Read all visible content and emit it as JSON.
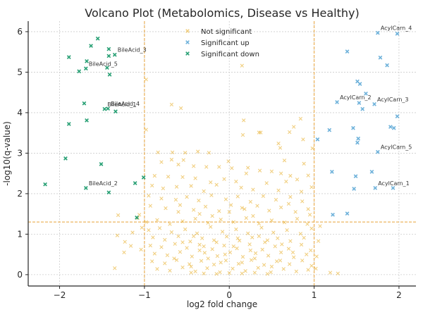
{
  "chart_data": {
    "type": "scatter",
    "title": "Volcano Plot (Metabolomics, Disease vs Healthy)",
    "xlabel": "log2 fold change",
    "ylabel": "-log10(q-value)",
    "xlim": [
      -2.37,
      2.2
    ],
    "ylim": [
      -0.28,
      6.26
    ],
    "xticks": [
      -2,
      -1,
      0,
      1,
      2
    ],
    "xtick_labels": [
      "−2",
      "−1",
      "0",
      "1",
      "2"
    ],
    "yticks": [
      0,
      1,
      2,
      3,
      4,
      5,
      6
    ],
    "ytick_labels": [
      "0",
      "1",
      "2",
      "3",
      "4",
      "5",
      "6"
    ],
    "grid": true,
    "marker": "x",
    "legend_position": "top-center",
    "thresholds": {
      "fold_change": [
        -1,
        1
      ],
      "q_value_line": 1.3,
      "color": "#E8A33A"
    },
    "series": [
      {
        "name": "Not significant",
        "color": "#E6A817",
        "opacity": 0.55,
        "points": [
          [
            0.15,
            5.16
          ],
          [
            -0.98,
            4.82
          ],
          [
            -0.68,
            4.2
          ],
          [
            -0.57,
            4.11
          ],
          [
            -0.98,
            3.58
          ],
          [
            0.17,
            3.81
          ],
          [
            0.16,
            3.45
          ],
          [
            0.35,
            3.51
          ],
          [
            0.37,
            3.51
          ],
          [
            0.71,
            3.52
          ],
          [
            0.84,
            3.85
          ],
          [
            0.76,
            3.65
          ],
          [
            0.98,
            3.12
          ],
          [
            0.6,
            3.13
          ],
          [
            0.65,
            2.82
          ],
          [
            0.88,
            2.74
          ],
          [
            0.22,
            2.64
          ],
          [
            0.87,
            3.34
          ],
          [
            0.58,
            3.24
          ],
          [
            -0.84,
            3.02
          ],
          [
            -0.67,
            3.02
          ],
          [
            -0.52,
            3.01
          ],
          [
            -0.37,
            3.04
          ],
          [
            -0.24,
            3.01
          ],
          [
            -0.68,
            2.84
          ],
          [
            -0.54,
            2.83
          ],
          [
            -0.8,
            2.78
          ],
          [
            -0.6,
            2.72
          ],
          [
            -0.42,
            2.68
          ],
          [
            -0.27,
            2.66
          ],
          [
            -0.12,
            2.66
          ],
          [
            -0.01,
            2.8
          ],
          [
            0.03,
            2.63
          ],
          [
            0.2,
            2.5
          ],
          [
            0.36,
            2.57
          ],
          [
            0.5,
            2.55
          ],
          [
            0.61,
            2.5
          ],
          [
            0.72,
            2.44
          ],
          [
            0.8,
            2.35
          ],
          [
            0.93,
            2.45
          ],
          [
            -0.88,
            2.44
          ],
          [
            -0.72,
            2.42
          ],
          [
            -0.55,
            2.41
          ],
          [
            -0.4,
            2.38
          ],
          [
            -0.22,
            2.28
          ],
          [
            -0.06,
            2.36
          ],
          [
            0.08,
            2.3
          ],
          [
            -0.91,
            2.2
          ],
          [
            -0.78,
            2.13
          ],
          [
            -0.62,
            2.17
          ],
          [
            -0.45,
            2.19
          ],
          [
            -0.3,
            2.06
          ],
          [
            -0.15,
            2.22
          ],
          [
            0.14,
            2.15
          ],
          [
            0.28,
            2.1
          ],
          [
            0.44,
            2.26
          ],
          [
            0.58,
            2.08
          ],
          [
            0.67,
            2.3
          ],
          [
            0.85,
            2.05
          ],
          [
            0.97,
            2.16
          ],
          [
            -0.95,
            1.95
          ],
          [
            -0.8,
            1.88
          ],
          [
            -0.63,
            1.85
          ],
          [
            -0.5,
            1.92
          ],
          [
            -0.36,
            1.83
          ],
          [
            -0.21,
            1.96
          ],
          [
            -0.04,
            1.86
          ],
          [
            0.1,
            1.93
          ],
          [
            0.25,
            1.8
          ],
          [
            0.4,
            1.94
          ],
          [
            0.55,
            1.85
          ],
          [
            0.72,
            1.92
          ],
          [
            0.86,
            1.81
          ],
          [
            0.93,
            1.62
          ],
          [
            -0.93,
            1.7
          ],
          [
            -0.75,
            1.64
          ],
          [
            -0.58,
            1.72
          ],
          [
            -0.42,
            1.6
          ],
          [
            -0.28,
            1.68
          ],
          [
            -0.12,
            1.57
          ],
          [
            0.02,
            1.72
          ],
          [
            0.18,
            1.62
          ],
          [
            0.33,
            1.7
          ],
          [
            0.47,
            1.58
          ],
          [
            0.61,
            1.66
          ],
          [
            0.78,
            1.55
          ],
          [
            0.95,
            1.48
          ],
          [
            -1.31,
            1.47
          ],
          [
            -1.06,
            1.48
          ],
          [
            -1.08,
            1.4
          ],
          [
            -1.32,
            0.97
          ],
          [
            -1.14,
            1.04
          ],
          [
            -1.23,
            0.81
          ],
          [
            -1.16,
            0.71
          ],
          [
            -1.24,
            0.55
          ],
          [
            -1.35,
            0.16
          ],
          [
            -1.04,
            0.62
          ],
          [
            -1.03,
            1.16
          ],
          [
            1.07,
            1.2
          ],
          [
            1.05,
            0.83
          ],
          [
            1.03,
            0.45
          ],
          [
            1.28,
            0.03
          ],
          [
            1.19,
            0.05
          ],
          [
            1.02,
            0.15
          ],
          [
            -0.98,
            1.3
          ],
          [
            -0.85,
            1.35
          ],
          [
            -0.7,
            1.25
          ],
          [
            -0.55,
            1.32
          ],
          [
            -0.4,
            1.38
          ],
          [
            -0.25,
            1.28
          ],
          [
            -0.1,
            1.36
          ],
          [
            0.05,
            1.3
          ],
          [
            0.2,
            1.4
          ],
          [
            0.35,
            1.26
          ],
          [
            0.5,
            1.34
          ],
          [
            0.65,
            1.29
          ],
          [
            0.8,
            1.38
          ],
          [
            0.92,
            1.25
          ],
          [
            -0.95,
            1.1
          ],
          [
            -0.82,
            1.15
          ],
          [
            -0.68,
            1.05
          ],
          [
            -0.52,
            1.12
          ],
          [
            -0.38,
            1.02
          ],
          [
            -0.22,
            1.18
          ],
          [
            -0.08,
            1.06
          ],
          [
            0.08,
            1.12
          ],
          [
            0.22,
            1.02
          ],
          [
            0.38,
            1.16
          ],
          [
            0.52,
            1.04
          ],
          [
            0.68,
            1.1
          ],
          [
            0.84,
            1.01
          ],
          [
            0.97,
            1.14
          ],
          [
            -0.9,
            0.92
          ],
          [
            -0.76,
            0.86
          ],
          [
            -0.6,
            0.95
          ],
          [
            -0.46,
            0.82
          ],
          [
            -0.32,
            0.9
          ],
          [
            -0.18,
            0.85
          ],
          [
            -0.03,
            0.94
          ],
          [
            0.12,
            0.84
          ],
          [
            0.27,
            0.92
          ],
          [
            0.42,
            0.8
          ],
          [
            0.57,
            0.9
          ],
          [
            0.72,
            0.83
          ],
          [
            0.88,
            0.91
          ],
          [
            -0.93,
            0.72
          ],
          [
            -0.8,
            0.68
          ],
          [
            -0.64,
            0.76
          ],
          [
            -0.5,
            0.66
          ],
          [
            -0.35,
            0.74
          ],
          [
            -0.2,
            0.63
          ],
          [
            -0.06,
            0.72
          ],
          [
            0.09,
            0.65
          ],
          [
            0.24,
            0.75
          ],
          [
            0.39,
            0.62
          ],
          [
            0.54,
            0.7
          ],
          [
            0.7,
            0.64
          ],
          [
            0.85,
            0.74
          ],
          [
            0.96,
            0.6
          ],
          [
            -0.88,
            0.52
          ],
          [
            -0.73,
            0.48
          ],
          [
            -0.58,
            0.56
          ],
          [
            -0.44,
            0.45
          ],
          [
            -0.29,
            0.54
          ],
          [
            -0.14,
            0.46
          ],
          [
            0.01,
            0.55
          ],
          [
            0.16,
            0.44
          ],
          [
            0.31,
            0.53
          ],
          [
            0.46,
            0.47
          ],
          [
            0.61,
            0.55
          ],
          [
            0.76,
            0.43
          ],
          [
            0.91,
            0.5
          ],
          [
            -0.91,
            0.33
          ],
          [
            -0.76,
            0.28
          ],
          [
            -0.62,
            0.36
          ],
          [
            -0.47,
            0.26
          ],
          [
            -0.33,
            0.34
          ],
          [
            -0.18,
            0.25
          ],
          [
            -0.04,
            0.35
          ],
          [
            0.11,
            0.27
          ],
          [
            0.26,
            0.36
          ],
          [
            0.41,
            0.24
          ],
          [
            0.56,
            0.33
          ],
          [
            0.71,
            0.26
          ],
          [
            0.86,
            0.35
          ],
          [
            0.97,
            0.22
          ],
          [
            -0.85,
            0.14
          ],
          [
            -0.7,
            0.1
          ],
          [
            -0.55,
            0.18
          ],
          [
            -0.4,
            0.08
          ],
          [
            -0.26,
            0.16
          ],
          [
            -0.11,
            0.06
          ],
          [
            0.04,
            0.15
          ],
          [
            0.19,
            0.09
          ],
          [
            0.34,
            0.17
          ],
          [
            0.49,
            0.06
          ],
          [
            0.64,
            0.14
          ],
          [
            0.79,
            0.08
          ],
          [
            0.93,
            0.12
          ],
          [
            -0.45,
            0.05
          ],
          [
            -0.3,
            0.03
          ],
          [
            -0.15,
            0.02
          ],
          [
            0.0,
            0.04
          ],
          [
            0.15,
            0.03
          ],
          [
            0.3,
            0.05
          ],
          [
            0.45,
            0.02
          ],
          [
            -0.35,
            0.6
          ],
          [
            -0.25,
            0.4
          ],
          [
            -0.15,
            0.8
          ],
          [
            -0.05,
            0.5
          ],
          [
            0.05,
            0.7
          ],
          [
            0.15,
            0.3
          ],
          [
            0.25,
            0.6
          ],
          [
            -0.42,
            0.95
          ],
          [
            -0.3,
            0.7
          ],
          [
            -0.1,
            0.3
          ],
          [
            0.1,
            0.9
          ],
          [
            0.3,
            0.4
          ],
          [
            0.45,
            0.85
          ],
          [
            0.6,
            0.35
          ],
          [
            -0.65,
            0.4
          ],
          [
            -0.55,
            0.8
          ],
          [
            -0.45,
            0.2
          ],
          [
            0.35,
            0.95
          ],
          [
            0.5,
            0.2
          ],
          [
            0.62,
            0.75
          ],
          [
            0.75,
            0.55
          ],
          [
            -0.2,
            1.45
          ],
          [
            0.0,
            1.55
          ],
          [
            0.15,
            1.65
          ],
          [
            -0.35,
            1.5
          ],
          [
            0.28,
            1.45
          ],
          [
            -0.6,
            1.55
          ],
          [
            0.7,
            1.75
          ]
        ]
      },
      {
        "name": "Significant up",
        "color": "#5DA9D6",
        "opacity": 0.9,
        "points": [
          [
            1.75,
            5.97
          ],
          [
            1.98,
            5.95
          ],
          [
            1.39,
            5.51
          ],
          [
            1.78,
            5.36
          ],
          [
            1.86,
            5.17
          ],
          [
            1.51,
            4.77
          ],
          [
            1.54,
            4.71
          ],
          [
            1.61,
            4.47
          ],
          [
            1.27,
            4.26
          ],
          [
            1.53,
            4.24
          ],
          [
            1.71,
            4.21
          ],
          [
            1.57,
            4.09
          ],
          [
            1.98,
            3.91
          ],
          [
            1.18,
            3.57
          ],
          [
            1.46,
            3.62
          ],
          [
            1.9,
            3.65
          ],
          [
            1.94,
            3.62
          ],
          [
            1.04,
            3.34
          ],
          [
            1.52,
            3.36
          ],
          [
            1.51,
            3.26
          ],
          [
            1.75,
            3.03
          ],
          [
            1.21,
            2.54
          ],
          [
            1.49,
            2.43
          ],
          [
            1.68,
            2.54
          ],
          [
            1.47,
            2.12
          ],
          [
            1.72,
            2.14
          ],
          [
            1.93,
            2.14
          ],
          [
            1.22,
            1.48
          ],
          [
            1.39,
            1.51
          ]
        ]
      },
      {
        "name": "Significant down",
        "color": "#1A9A6C",
        "opacity": 0.95,
        "points": [
          [
            -1.55,
            5.83
          ],
          [
            -1.63,
            5.65
          ],
          [
            -1.42,
            5.57
          ],
          [
            -1.89,
            5.37
          ],
          [
            -1.35,
            5.43
          ],
          [
            -1.68,
            5.27
          ],
          [
            -1.69,
            5.09
          ],
          [
            -1.77,
            5.02
          ],
          [
            -1.44,
            5.11
          ],
          [
            -1.41,
            4.94
          ],
          [
            -1.42,
            5.4
          ],
          [
            -1.71,
            4.23
          ],
          [
            -1.47,
            4.09
          ],
          [
            -1.43,
            4.1
          ],
          [
            -1.34,
            4.03
          ],
          [
            -1.89,
            3.72
          ],
          [
            -1.68,
            3.81
          ],
          [
            -1.93,
            2.87
          ],
          [
            -1.51,
            2.73
          ],
          [
            -2.17,
            2.23
          ],
          [
            -1.69,
            2.14
          ],
          [
            -1.42,
            2.03
          ],
          [
            -1.11,
            2.26
          ],
          [
            -1.01,
            2.4
          ],
          [
            -1.09,
            1.41
          ]
        ]
      }
    ],
    "annotations": [
      {
        "text": "BileAcid_3",
        "x": -1.35,
        "y": 5.43
      },
      {
        "text": "BileAcid_5",
        "x": -1.69,
        "y": 5.09
      },
      {
        "text": "BileAcid_4",
        "x": -1.43,
        "y": 4.1
      },
      {
        "text": "BileAcid_1",
        "x": -1.47,
        "y": 4.09
      },
      {
        "text": "BileAcid_2",
        "x": -1.69,
        "y": 2.14
      },
      {
        "text": "AcylCarn_4",
        "x": 1.75,
        "y": 5.97
      },
      {
        "text": "AcylCarn_2",
        "x": 1.27,
        "y": 4.26
      },
      {
        "text": "AcylCarn_3",
        "x": 1.71,
        "y": 4.21
      },
      {
        "text": "AcylCarn_5",
        "x": 1.75,
        "y": 3.03
      },
      {
        "text": "AcylCarn_1",
        "x": 1.72,
        "y": 2.14
      }
    ]
  }
}
